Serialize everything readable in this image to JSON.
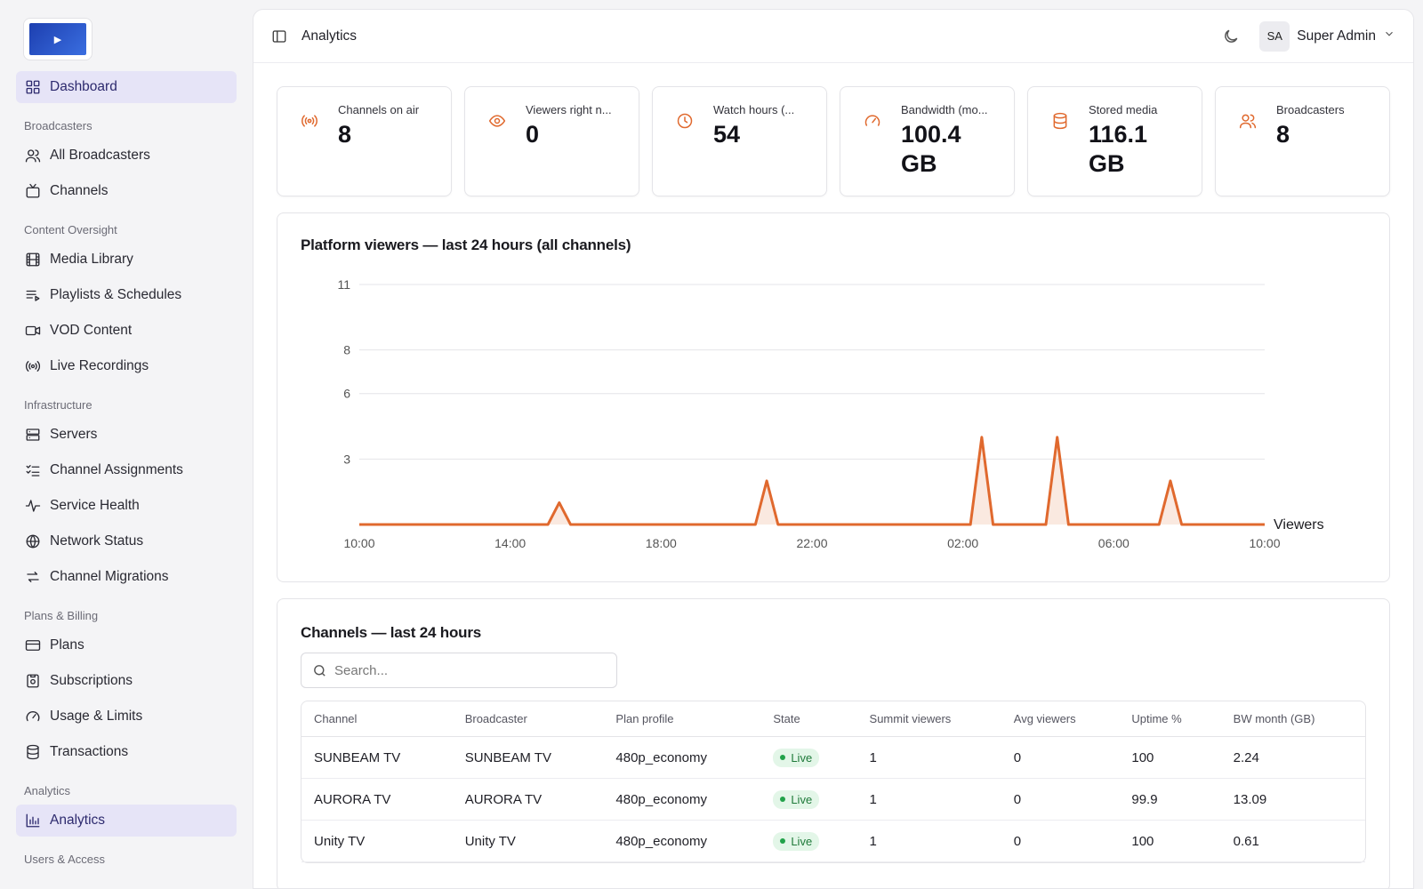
{
  "sidebar": {
    "logo_glyph": "▶",
    "dashboard": "Dashboard",
    "sections": {
      "broadcasters": "Broadcasters",
      "content": "Content Oversight",
      "infrastructure": "Infrastructure",
      "plans": "Plans & Billing",
      "analytics": "Analytics",
      "users": "Users & Access"
    },
    "items": {
      "all_broadcasters": "All Broadcasters",
      "channels": "Channels",
      "media_library": "Media Library",
      "playlists": "Playlists & Schedules",
      "vod": "VOD Content",
      "live_recordings": "Live Recordings",
      "servers": "Servers",
      "channel_assignments": "Channel Assignments",
      "service_health": "Service Health",
      "network_status": "Network Status",
      "channel_migrations": "Channel Migrations",
      "plans": "Plans",
      "subscriptions": "Subscriptions",
      "usage_limits": "Usage & Limits",
      "transactions": "Transactions",
      "analytics": "Analytics"
    }
  },
  "header": {
    "title": "Analytics",
    "avatar_initials": "SA",
    "user_name": "Super Admin"
  },
  "stats": [
    {
      "label": "Channels on air",
      "value": "8",
      "icon": "broadcast-icon"
    },
    {
      "label": "Viewers right n...",
      "value": "0",
      "icon": "eye-icon"
    },
    {
      "label": "Watch hours (...",
      "value": "54",
      "icon": "clock-icon"
    },
    {
      "label": "Bandwidth (mo...",
      "value": "100.4 GB",
      "icon": "gauge-icon"
    },
    {
      "label": "Stored media",
      "value": "116.1 GB",
      "icon": "database-icon"
    },
    {
      "label": "Broadcasters",
      "value": "8",
      "icon": "users-icon"
    }
  ],
  "chart": {
    "title": "Platform viewers — last 24 hours (all channels)"
  },
  "chart_data": {
    "type": "line",
    "title": "Platform viewers — last 24 hours (all channels)",
    "series": [
      {
        "name": "Viewers",
        "color": "#e0692e"
      }
    ],
    "x_ticks": [
      "10:00",
      "14:00",
      "18:00",
      "22:00",
      "02:00",
      "06:00",
      "10:00"
    ],
    "y_ticks": [
      3,
      6,
      8,
      11
    ],
    "ylim": [
      0,
      11
    ],
    "points": [
      {
        "hour": 0,
        "v": 0
      },
      {
        "hour": 5.0,
        "v": 0
      },
      {
        "hour": 5.3,
        "v": 1
      },
      {
        "hour": 5.6,
        "v": 0
      },
      {
        "hour": 10.5,
        "v": 0
      },
      {
        "hour": 10.8,
        "v": 2
      },
      {
        "hour": 11.1,
        "v": 0
      },
      {
        "hour": 16.2,
        "v": 0
      },
      {
        "hour": 16.5,
        "v": 4
      },
      {
        "hour": 16.8,
        "v": 0
      },
      {
        "hour": 18.2,
        "v": 0
      },
      {
        "hour": 18.5,
        "v": 4
      },
      {
        "hour": 18.8,
        "v": 0
      },
      {
        "hour": 21.2,
        "v": 0
      },
      {
        "hour": 21.5,
        "v": 2
      },
      {
        "hour": 21.8,
        "v": 0
      },
      {
        "hour": 24,
        "v": 0
      }
    ],
    "grid": true,
    "legend": "right"
  },
  "table": {
    "title": "Channels — last 24 hours",
    "search_placeholder": "Search...",
    "columns": [
      "Channel",
      "Broadcaster",
      "Plan profile",
      "State",
      "Summit viewers",
      "Avg viewers",
      "Uptime %",
      "BW month (GB)"
    ],
    "rows": [
      {
        "channel": "SUNBEAM TV",
        "broadcaster": "SUNBEAM TV",
        "plan": "480p_economy",
        "state": "Live",
        "peak": "1",
        "avg": "0",
        "uptime": "100",
        "bw": "2.24"
      },
      {
        "channel": "AURORA TV",
        "broadcaster": "AURORA TV",
        "plan": "480p_economy",
        "state": "Live",
        "peak": "1",
        "avg": "0",
        "uptime": "99.9",
        "bw": "13.09"
      },
      {
        "channel": "Unity TV",
        "broadcaster": "Unity TV",
        "plan": "480p_economy",
        "state": "Live",
        "peak": "1",
        "avg": "0",
        "uptime": "100",
        "bw": "0.61"
      }
    ]
  }
}
